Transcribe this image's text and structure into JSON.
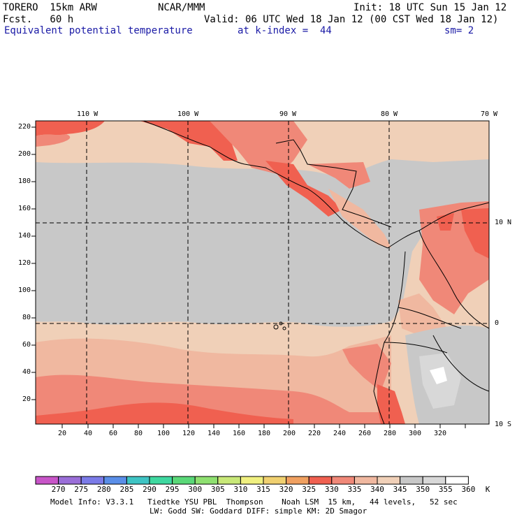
{
  "header": {
    "model": "TORERO  15km ARW",
    "center": "NCAR/MMM",
    "init": "Init: 18 UTC Sun 15 Jan 12",
    "fcst": "Fcst.   60 h",
    "valid": "Valid: 06 UTC Wed 18 Jan 12 (00 CST Wed 18 Jan 12)",
    "field": "Equivalent potential temperature",
    "level": "at k-index =  44",
    "smooth": "sm= 2"
  },
  "map": {
    "top_labels": [
      "110 W",
      "100 W",
      "90 W",
      "80 W",
      "70 W"
    ],
    "right_labels": [
      "10 N",
      "0",
      "10 S"
    ],
    "y_ticks": [
      "220",
      "200",
      "180",
      "160",
      "140",
      "120",
      "100",
      "80",
      "60",
      "40",
      "20"
    ],
    "x_ticks": [
      "20",
      "40",
      "60",
      "80",
      "100",
      "120",
      "140",
      "160",
      "180",
      "200",
      "220",
      "240",
      "260",
      "280",
      "300",
      "320"
    ]
  },
  "colorbar": {
    "values": [
      "270",
      "275",
      "280",
      "285",
      "290",
      "295",
      "300",
      "305",
      "310",
      "315",
      "320",
      "325",
      "330",
      "335",
      "340",
      "345",
      "350",
      "355",
      "360"
    ],
    "unit": "K",
    "colors": [
      "#c855c8",
      "#9a6ed8",
      "#7b7be8",
      "#5a8ee8",
      "#3ec4c4",
      "#3ed8a0",
      "#5ad878",
      "#8ee070",
      "#c8e878",
      "#f0f080",
      "#f0d070",
      "#f0a060",
      "#f06050",
      "#f08878",
      "#f0b8a0",
      "#f0d0b8",
      "#c8c8c8",
      "#d8d8d8",
      "#ffffff"
    ]
  },
  "footer": {
    "line1": "Model Info: V3.3.1   Tiedtke YSU PBL  Thompson    Noah LSM  15 km,   44 levels,   52 sec",
    "line2": "LW: Godd SW: Goddard DIFF: simple KM: 2D Smagor"
  }
}
